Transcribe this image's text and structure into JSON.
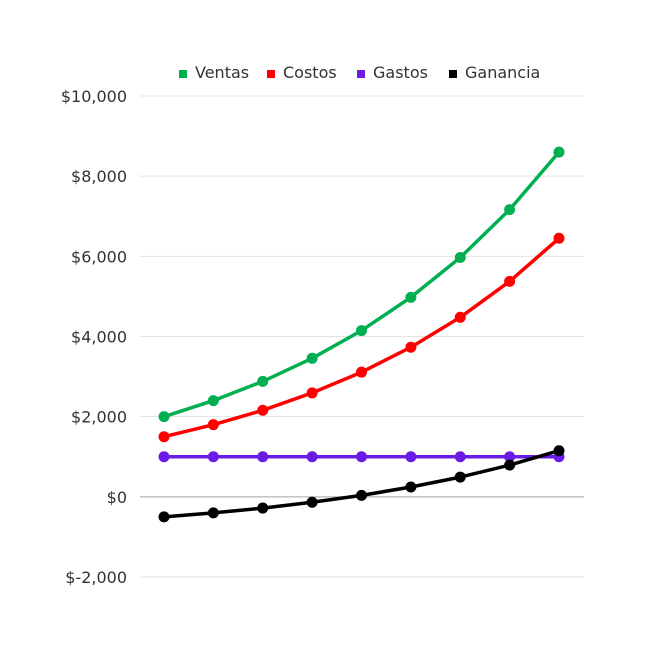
{
  "chart_data": {
    "type": "line",
    "title": "",
    "xlabel": "",
    "ylabel": "",
    "ylim": [
      -2000,
      10000
    ],
    "yticks": [
      {
        "value": 10000,
        "label": "$10,000"
      },
      {
        "value": 8000,
        "label": "$8,000"
      },
      {
        "value": 6000,
        "label": "$6,000"
      },
      {
        "value": 4000,
        "label": "$4,000"
      },
      {
        "value": 2000,
        "label": "$2,000"
      },
      {
        "value": 0,
        "label": "$0"
      },
      {
        "value": -2000,
        "label": "$-2,000"
      }
    ],
    "x": [
      1,
      2,
      3,
      4,
      5,
      6,
      7,
      8,
      9
    ],
    "grid": true,
    "legend_position": "top",
    "series": [
      {
        "name": "Ventas",
        "color": "#00b050",
        "values": [
          2000,
          2400,
          2880,
          3456,
          4147,
          4977,
          5972,
          7166,
          8600
        ]
      },
      {
        "name": "Costos",
        "color": "#ff0000",
        "values": [
          1500,
          1800,
          2160,
          2592,
          3110,
          3732,
          4479,
          5375,
          6450
        ]
      },
      {
        "name": "Gastos",
        "color": "#6a1be6",
        "values": [
          1000,
          1000,
          1000,
          1000,
          1000,
          1000,
          1000,
          1000,
          1000
        ]
      },
      {
        "name": "Ganancia",
        "color": "#000000",
        "values": [
          -500,
          -400,
          -280,
          -136,
          37,
          245,
          493,
          791,
          1150
        ]
      }
    ]
  }
}
